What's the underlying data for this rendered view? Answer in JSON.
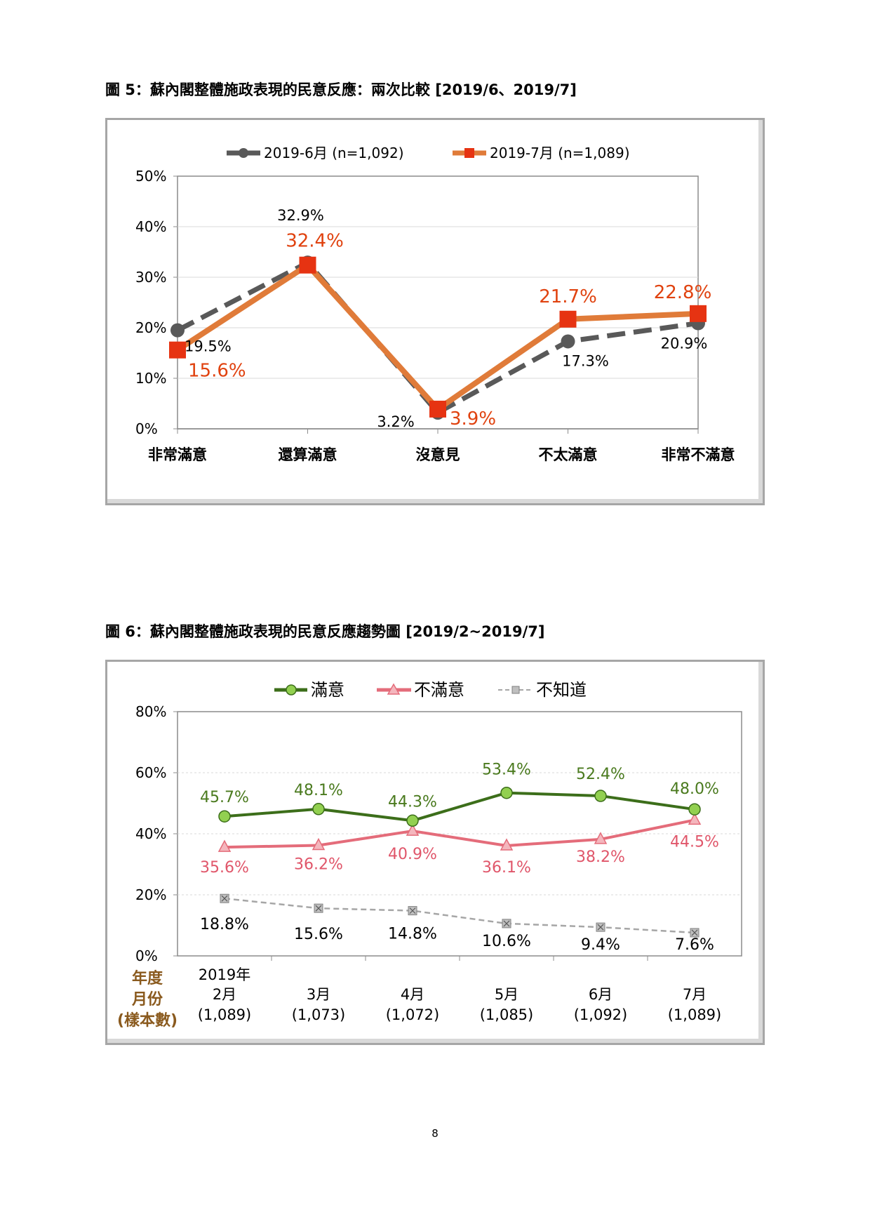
{
  "figure5": {
    "caption": "圖 5：蘇內閣整體施政表現的民意反應：兩次比較  [2019/6、2019/7]",
    "chart_data": {
      "type": "line",
      "categories": [
        "非常滿意",
        "還算滿意",
        "沒意見",
        "不太滿意",
        "非常不滿意"
      ],
      "y_ticks": [
        "0%",
        "10%",
        "20%",
        "30%",
        "40%",
        "50%"
      ],
      "ylim": [
        0,
        50
      ],
      "grid": true,
      "legend_position": "top",
      "series": [
        {
          "name": "2019-6月 (n=1,092)",
          "values": [
            19.5,
            32.9,
            3.2,
            17.3,
            20.9
          ],
          "labels": [
            "19.5%",
            "32.9%",
            "3.2%",
            "17.3%",
            "20.9%"
          ],
          "color": "#595959",
          "label_color": "#000000",
          "dashed": true,
          "marker": "circle"
        },
        {
          "name": "2019-7月 (n=1,089)",
          "values": [
            15.6,
            32.4,
            3.9,
            21.7,
            22.8
          ],
          "labels": [
            "15.6%",
            "32.4%",
            "3.9%",
            "21.7%",
            "22.8%"
          ],
          "color": "#e07b39",
          "label_color": "#e0420f",
          "marker_color": "#e63312",
          "dashed": false,
          "marker": "square"
        }
      ]
    }
  },
  "figure6": {
    "caption": "圖 6：蘇內閣整體施政表現的民意反應趨勢圖  [2019/2~2019/7]",
    "chart_data": {
      "type": "line",
      "categories": [
        "2月",
        "3月",
        "4月",
        "5月",
        "6月",
        "7月"
      ],
      "category_year": "2019年",
      "sample_sizes": [
        "(1,089)",
        "(1,073)",
        "(1,072)",
        "(1,085)",
        "(1,092)",
        "(1,089)"
      ],
      "axis_legend": [
        "年度",
        "月份",
        "(樣本數)"
      ],
      "y_ticks": [
        "0%",
        "20%",
        "40%",
        "60%",
        "80%"
      ],
      "ylim": [
        0,
        80
      ],
      "grid": true,
      "legend_position": "top",
      "series": [
        {
          "name": "滿意",
          "values": [
            45.7,
            48.1,
            44.3,
            53.4,
            52.4,
            48.0
          ],
          "labels": [
            "45.7%",
            "48.1%",
            "44.3%",
            "53.4%",
            "52.4%",
            "48.0%"
          ],
          "color": "#3c6e1a",
          "label_color": "#4a7a1e",
          "marker_fill": "#92d050",
          "marker": "circle"
        },
        {
          "name": "不滿意",
          "values": [
            35.6,
            36.2,
            40.9,
            36.1,
            38.2,
            44.5
          ],
          "labels": [
            "35.6%",
            "36.2%",
            "40.9%",
            "36.1%",
            "38.2%",
            "44.5%"
          ],
          "color": "#e46c7a",
          "label_color": "#e0566a",
          "marker_fill": "#f4b6bd",
          "marker": "triangle"
        },
        {
          "name": "不知道",
          "values": [
            18.8,
            15.6,
            14.8,
            10.6,
            9.4,
            7.6
          ],
          "labels": [
            "18.8%",
            "15.6%",
            "14.8%",
            "10.6%",
            "9.4%",
            "7.6%"
          ],
          "color": "#a6a6a6",
          "label_color": "#000000",
          "marker_fill": "#bfbfbf",
          "marker": "x-square",
          "dashed": true
        }
      ]
    }
  },
  "page_number": "8"
}
